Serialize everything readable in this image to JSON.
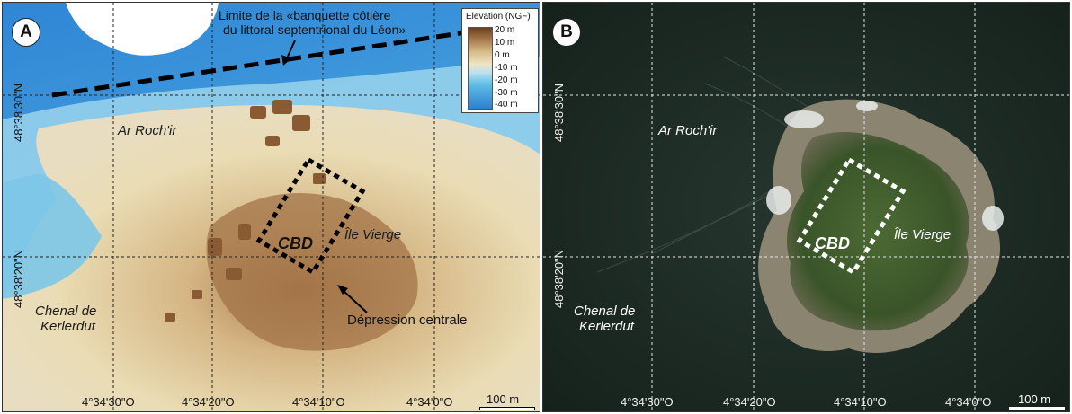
{
  "panel_a": {
    "label": "A",
    "boundary_caption_line1": "Limite de la «banquette côtière",
    "boundary_caption_line2": "du littoral septentrional du Léon»",
    "legend": {
      "title": "Elevation (NGF)",
      "ticks": [
        "20 m",
        "10 m",
        "0 m",
        "-10 m",
        "-20 m",
        "-30 m",
        "-40 m"
      ]
    },
    "places": {
      "ar_rochir": "Ar Roch'ir",
      "cbd": "CBD",
      "ile_vierge": "Île Vierge",
      "chenal_line1": "Chenal de",
      "chenal_line2": "Kerlerdut",
      "depression": "Dépression centrale"
    },
    "lat_labels": [
      "48°38'30\"N",
      "48°38'20\"N"
    ],
    "lon_labels": [
      "4°34'30\"O",
      "4°34'20\"O",
      "4°34'10\"O",
      "4°34'0\"O"
    ],
    "scale": "100 m"
  },
  "panel_b": {
    "label": "B",
    "places": {
      "ar_rochir": "Ar Roch'ir",
      "cbd": "CBD",
      "ile_vierge": "Île Vierge",
      "chenal_line1": "Chenal de",
      "chenal_line2": "Kerlerdut"
    },
    "lat_labels": [
      "48°38'30\"N",
      "48°38'20\"N"
    ],
    "lon_labels": [
      "4°34'30\"O",
      "4°34'20\"O",
      "4°34'10\"O",
      "4°34'0\"O"
    ],
    "scale": "100 m"
  },
  "colors": {
    "deep_water": "#2f7fd0",
    "shallow_water": "#8fd0ee",
    "sand": "#e7d3a4",
    "rock": "#8a5a32",
    "sea_photo": "#1c2a26",
    "island_green": "#3f5a2c"
  }
}
